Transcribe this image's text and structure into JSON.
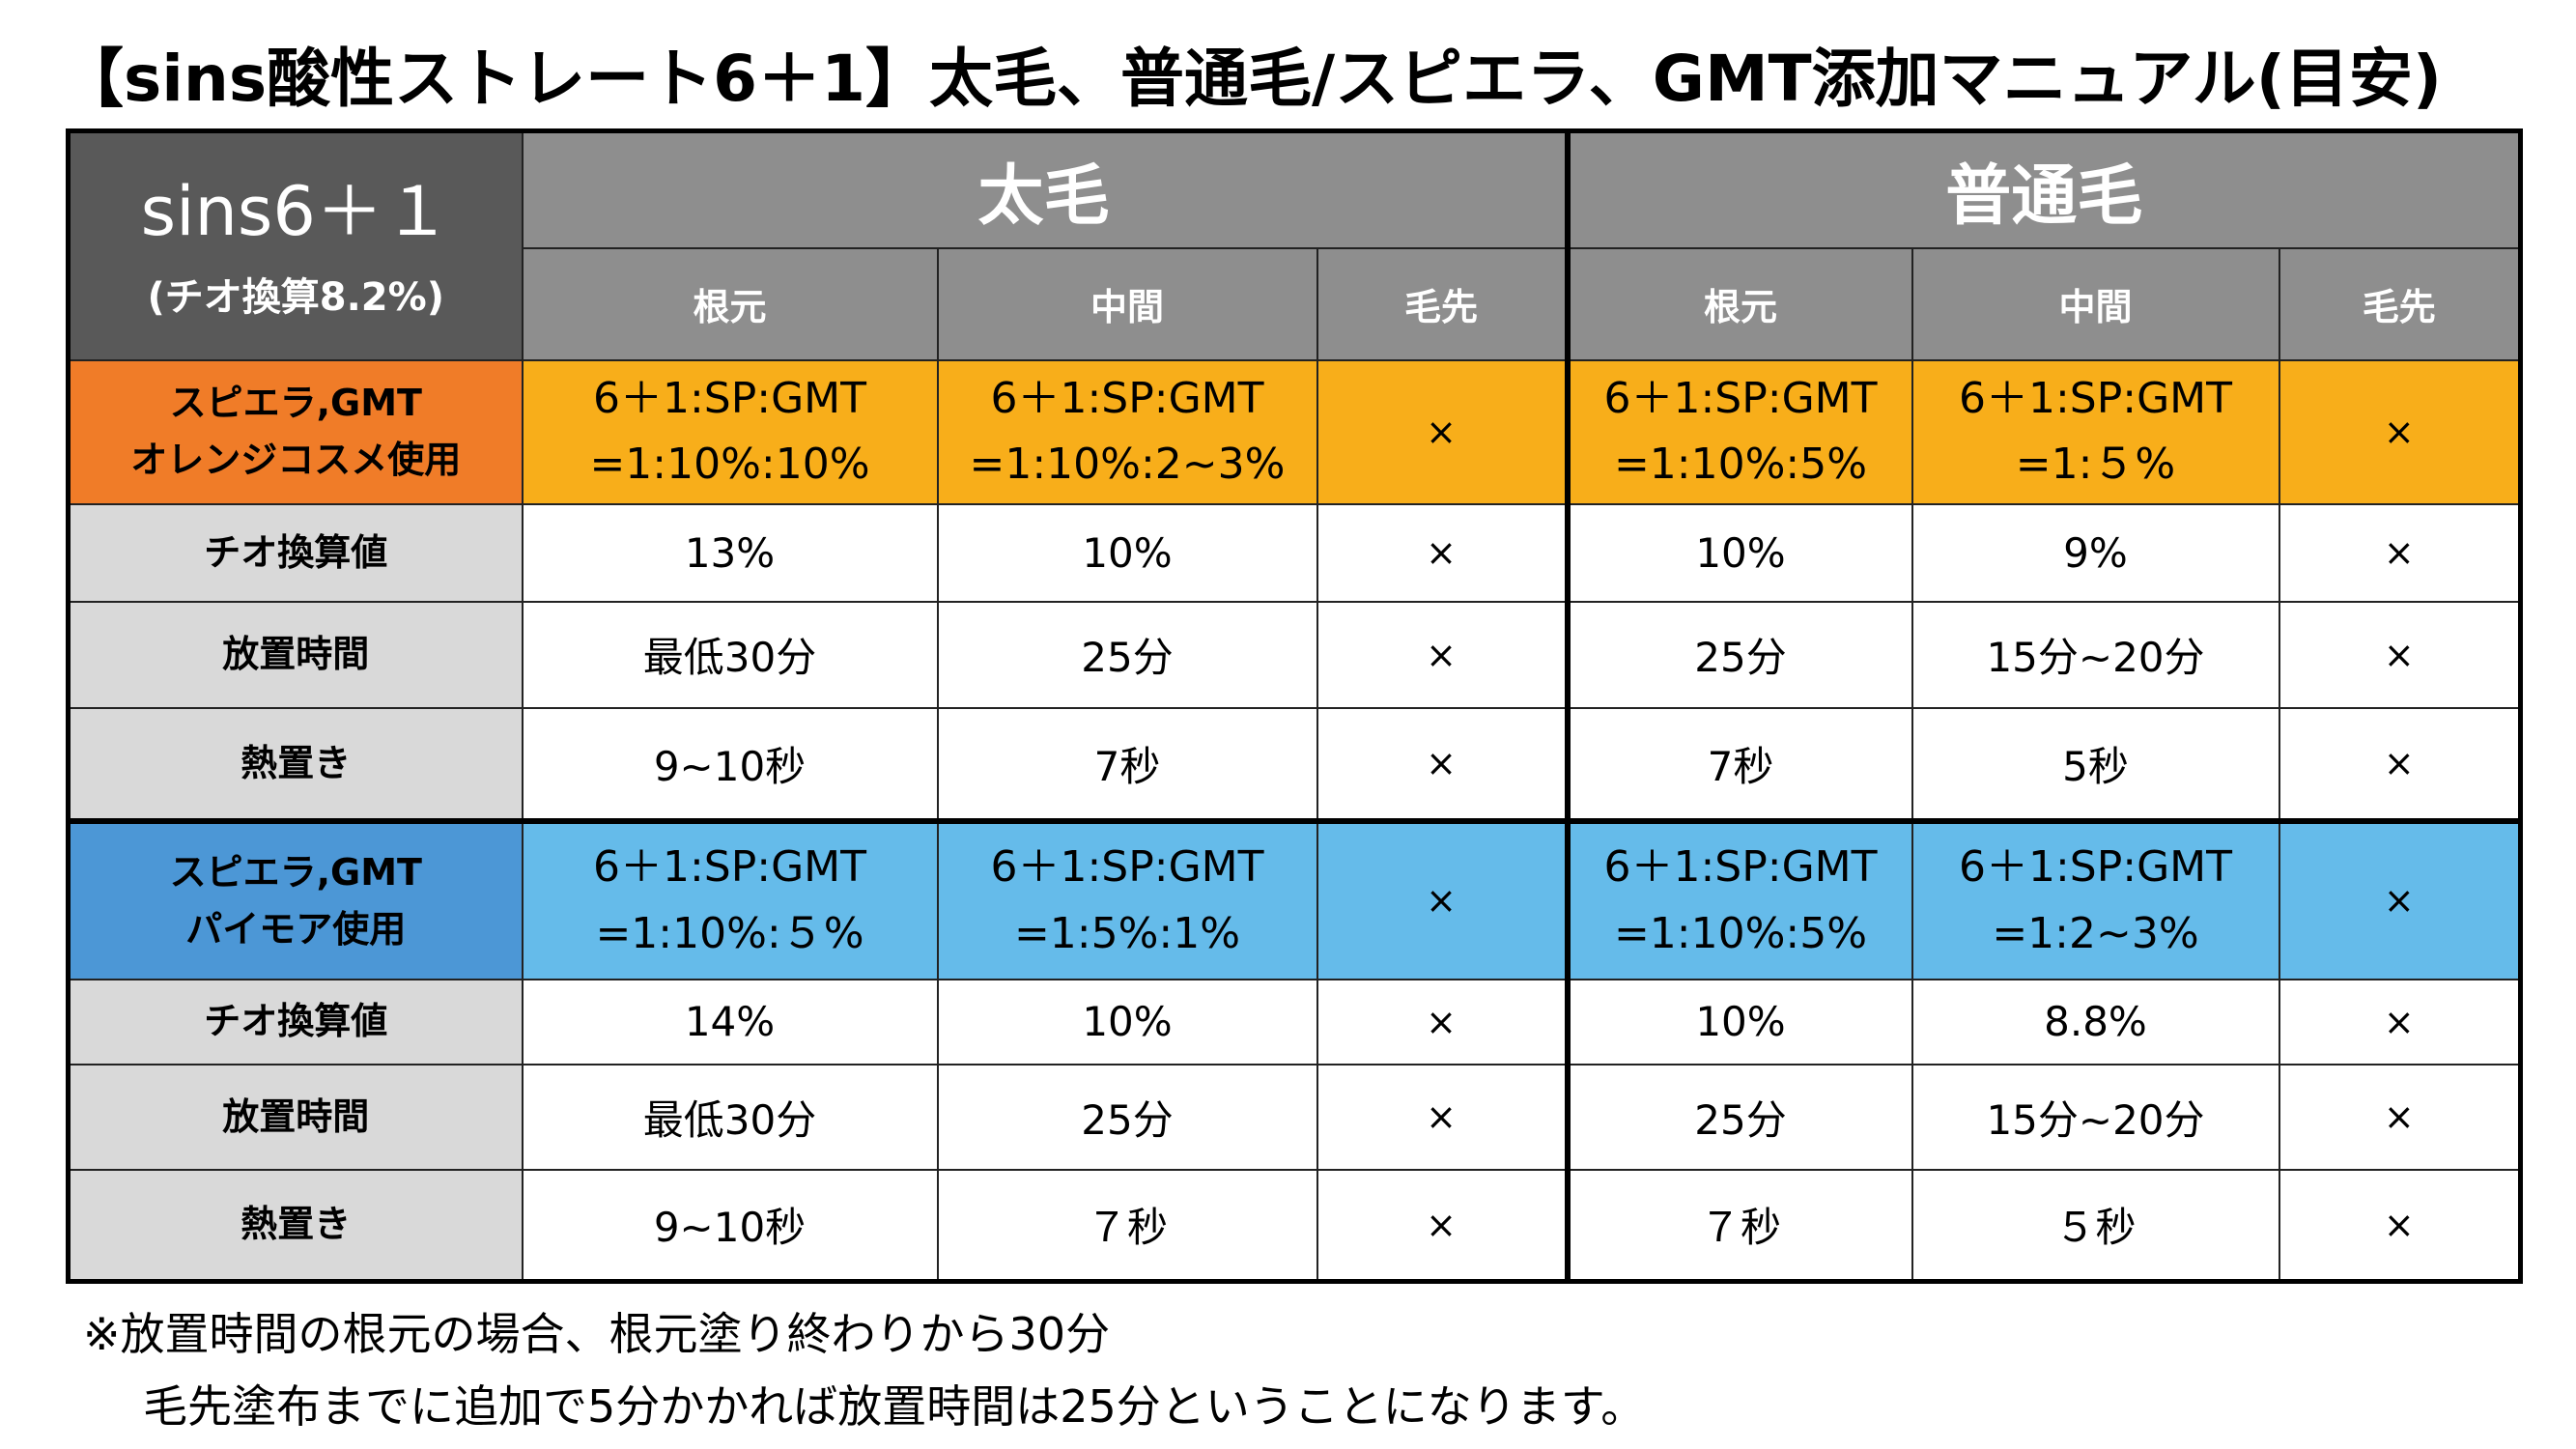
{
  "title": "【sins酸性ストレート6＋1】太毛、普通毛/スピエラ、GMT添加マニュアル(目安)",
  "corner": {
    "main": "sins6＋１",
    "sub": "(チオ換算8.2%)"
  },
  "groups": [
    "太毛",
    "普通毛"
  ],
  "columns": [
    "根元",
    "中間",
    "毛先",
    "根元",
    "中間",
    "毛先"
  ],
  "sections": [
    {
      "color": "#f8ae1a",
      "label_color": "#f07c28",
      "header": {
        "label_line1": "スピエラ,GMT",
        "label_line2": "オレンジコスメ使用",
        "cells": [
          {
            "line1": "6＋1:SP:GMT",
            "line2": "=1:10%:10%"
          },
          {
            "line1": "6＋1:SP:GMT",
            "line2": "=1:10%:2~3%"
          },
          {
            "line1": "×",
            "line2": ""
          },
          {
            "line1": "6＋1:SP:GMT",
            "line2": "=1:10%:5%"
          },
          {
            "line1": "6＋1:SP:GMT",
            "line2": "=1:５%"
          },
          {
            "line1": "×",
            "line2": ""
          }
        ]
      },
      "rows": [
        {
          "label": "チオ換算値",
          "values": [
            "13%",
            "10%",
            "×",
            "10%",
            "9%",
            "×"
          ]
        },
        {
          "label": "放置時間",
          "values": [
            "最低30分",
            "25分",
            "×",
            "25分",
            "15分~20分",
            "×"
          ]
        },
        {
          "label": "熱置き",
          "values": [
            "9~10秒",
            "7秒",
            "×",
            "7秒",
            "5秒",
            "×"
          ]
        }
      ]
    },
    {
      "color": "#65bbea",
      "label_color": "#4c97d6",
      "header": {
        "label_line1": "スピエラ,GMT",
        "label_line2": "パイモア使用",
        "cells": [
          {
            "line1": "6＋1:SP:GMT",
            "line2": "=1:10%:５%"
          },
          {
            "line1": "6＋1:SP:GMT",
            "line2": "=1:5%:1%"
          },
          {
            "line1": "×",
            "line2": ""
          },
          {
            "line1": "6＋1:SP:GMT",
            "line2": "=1:10%:5%"
          },
          {
            "line1": "6＋1:SP:GMT",
            "line2": "=1:2~3%"
          },
          {
            "line1": "×",
            "line2": ""
          }
        ]
      },
      "rows": [
        {
          "label": "チオ換算値",
          "values": [
            "14%",
            "10%",
            "×",
            "10%",
            "8.8%",
            "×"
          ]
        },
        {
          "label": "放置時間",
          "values": [
            "最低30分",
            "25分",
            "×",
            "25分",
            "15分~20分",
            "×"
          ]
        },
        {
          "label": "熱置き",
          "values": [
            "9~10秒",
            "７秒",
            "×",
            "７秒",
            "５秒",
            "×"
          ]
        }
      ]
    }
  ],
  "notes": [
    "※放置時間の根元の場合、根元塗り終わりから30分",
    "毛先塗布までに追加で5分かかれば放置時間は25分ということになります。"
  ]
}
